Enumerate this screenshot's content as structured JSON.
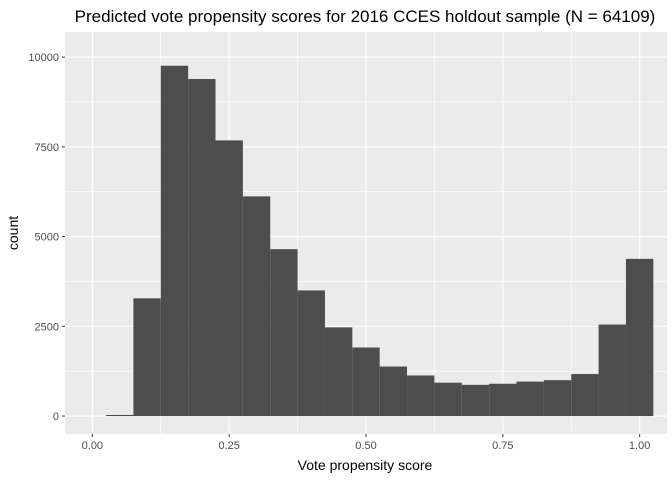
{
  "chart_data": {
    "type": "bar",
    "title": "Predicted vote propensity scores for 2016 CCES holdout sample (N = 64109)",
    "xlabel": "Vote propensity score",
    "ylabel": "count",
    "xlim": [
      -0.05,
      1.05
    ],
    "ylim": [
      0,
      10000
    ],
    "x_ticks": [
      0.0,
      0.25,
      0.5,
      0.75,
      1.0
    ],
    "x_tick_labels": [
      "0.00",
      "0.25",
      "0.50",
      "0.75",
      "1.00"
    ],
    "y_ticks": [
      0,
      2500,
      5000,
      7500,
      10000
    ],
    "y_tick_labels": [
      "0",
      "2500",
      "5000",
      "7500",
      "10000"
    ],
    "grid": true,
    "bin_width": 0.05,
    "bins": [
      {
        "x_min": 0.025,
        "x_max": 0.075,
        "value": 30
      },
      {
        "x_min": 0.075,
        "x_max": 0.125,
        "value": 3280
      },
      {
        "x_min": 0.125,
        "x_max": 0.175,
        "value": 9760
      },
      {
        "x_min": 0.175,
        "x_max": 0.225,
        "value": 9390
      },
      {
        "x_min": 0.225,
        "x_max": 0.275,
        "value": 7680
      },
      {
        "x_min": 0.275,
        "x_max": 0.325,
        "value": 6120
      },
      {
        "x_min": 0.325,
        "x_max": 0.375,
        "value": 4650
      },
      {
        "x_min": 0.375,
        "x_max": 0.425,
        "value": 3500
      },
      {
        "x_min": 0.425,
        "x_max": 0.475,
        "value": 2470
      },
      {
        "x_min": 0.475,
        "x_max": 0.525,
        "value": 1910
      },
      {
        "x_min": 0.525,
        "x_max": 0.575,
        "value": 1380
      },
      {
        "x_min": 0.575,
        "x_max": 0.625,
        "value": 1130
      },
      {
        "x_min": 0.625,
        "x_max": 0.675,
        "value": 930
      },
      {
        "x_min": 0.675,
        "x_max": 0.725,
        "value": 870
      },
      {
        "x_min": 0.725,
        "x_max": 0.775,
        "value": 900
      },
      {
        "x_min": 0.775,
        "x_max": 0.825,
        "value": 960
      },
      {
        "x_min": 0.825,
        "x_max": 0.875,
        "value": 1000
      },
      {
        "x_min": 0.875,
        "x_max": 0.925,
        "value": 1170
      },
      {
        "x_min": 0.925,
        "x_max": 0.975,
        "value": 2550
      },
      {
        "x_min": 0.975,
        "x_max": 1.025,
        "value": 4380
      }
    ],
    "colors": {
      "panel_background": "#ebebeb",
      "grid_major": "#ffffff",
      "bar_fill": "#4d4d4d",
      "tick_text": "#4d4d4d",
      "text": "#000000"
    }
  }
}
